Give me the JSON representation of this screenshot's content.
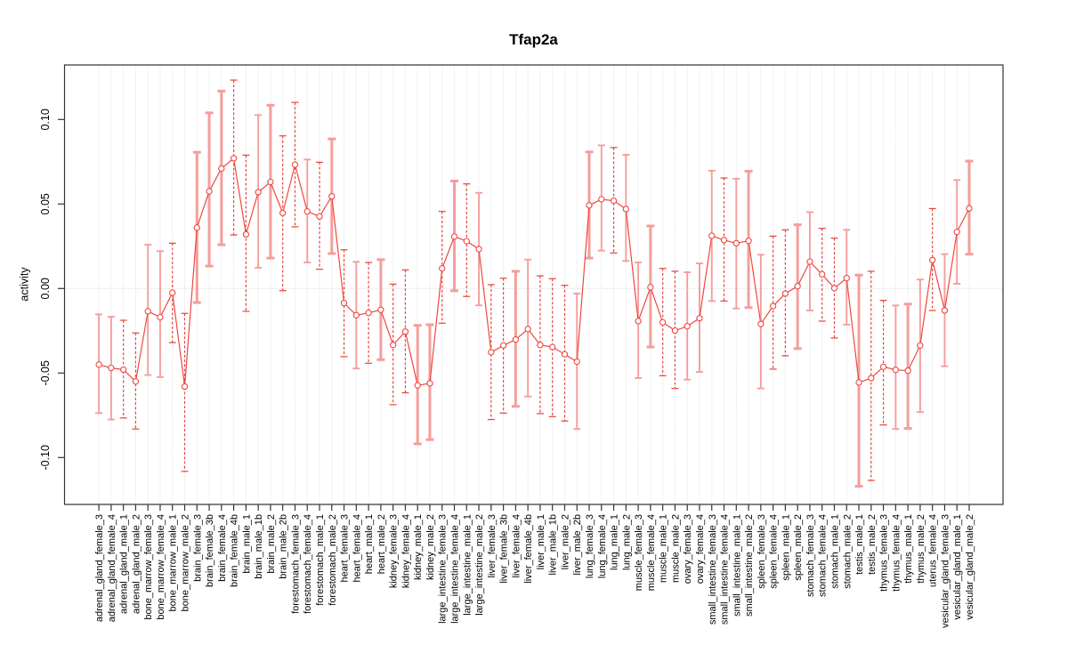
{
  "chart_data": {
    "type": "line",
    "title": "Tfap2a",
    "xlabel": "",
    "ylabel": "activity",
    "ylim": [
      -0.128,
      0.132
    ],
    "yticks": [
      -0.1,
      -0.05,
      0.0,
      0.05,
      0.1
    ],
    "grid": "dotted vertical gridline per category; dotted horizontal line at y=0",
    "legend": "none",
    "point_marker": "open-circle",
    "error_bars": true,
    "colors": {
      "line": "#ef4740",
      "point_stroke": "#ef4740",
      "errorbar_solid": "#f49e9b",
      "errorbar_dashed": "#e8423b",
      "grid": "#d8d8d8",
      "zero_line": "#c8c8c8",
      "frame": "#333333",
      "text": "#000000"
    },
    "categories": [
      "adrenal_gland_female_3",
      "adrenal_gland_female_4",
      "adrenal_gland_male_1",
      "adrenal_gland_male_2",
      "bone_marrow_female_3",
      "bone_marrow_female_4",
      "bone_marrow_male_1",
      "bone_marrow_male_2",
      "brain_female_3",
      "brain_female_3b",
      "brain_female_4",
      "brain_female_4b",
      "brain_male_1",
      "brain_male_1b",
      "brain_male_2",
      "brain_male_2b",
      "forestomach_female_3",
      "forestomach_female_4",
      "forestomach_male_1",
      "forestomach_male_2",
      "heart_female_3",
      "heart_female_4",
      "heart_male_1",
      "heart_male_2",
      "kidney_female_3",
      "kidney_female_4",
      "kidney_male_1",
      "kidney_male_2",
      "large_intestine_female_3",
      "large_intestine_female_4",
      "large_intestine_male_1",
      "large_intestine_male_2",
      "liver_female_3",
      "liver_female_3b",
      "liver_female_4",
      "liver_female_4b",
      "liver_male_1",
      "liver_male_1b",
      "liver_male_2",
      "liver_male_2b",
      "lung_female_3",
      "lung_female_4",
      "lung_male_1",
      "lung_male_2",
      "muscle_female_3",
      "muscle_female_4",
      "muscle_male_1",
      "muscle_male_2",
      "ovary_female_3",
      "ovary_female_4",
      "small_intestine_female_3",
      "small_intestine_female_4",
      "small_intestine_male_1",
      "small_intestine_male_2",
      "spleen_female_3",
      "spleen_female_4",
      "spleen_male_1",
      "spleen_male_2",
      "stomach_female_3",
      "stomach_female_4",
      "stomach_male_1",
      "stomach_male_2",
      "testis_male_1",
      "testis_male_2",
      "thymus_female_3",
      "thymus_female_4",
      "thymus_male_1",
      "thymus_male_2",
      "uterus_female_4",
      "vesicular_gland_female_3",
      "vesicular_gland_male_1",
      "vesicular_gland_male_2"
    ],
    "series": [
      {
        "name": "activity",
        "values": [
          -0.045,
          -0.047,
          -0.048,
          -0.055,
          -0.0135,
          -0.017,
          -0.0025,
          -0.058,
          0.036,
          0.0575,
          0.071,
          0.077,
          0.032,
          0.057,
          0.063,
          0.0447,
          0.0733,
          0.0456,
          0.0426,
          0.0545,
          -0.0086,
          -0.0158,
          -0.0144,
          -0.0126,
          -0.0334,
          -0.0255,
          -0.0573,
          -0.0561,
          0.0119,
          0.0307,
          0.028,
          0.0233,
          -0.0377,
          -0.0337,
          -0.0302,
          -0.024,
          -0.0334,
          -0.0346,
          -0.0389,
          -0.0433,
          0.0492,
          0.0528,
          0.0519,
          0.047,
          -0.0193,
          0.0008,
          -0.02,
          -0.0249,
          -0.0223,
          -0.0176,
          0.0312,
          0.0286,
          0.0268,
          0.0282,
          -0.021,
          -0.0104,
          -0.003,
          0.0014,
          0.0159,
          0.0084,
          0.0002,
          0.0061,
          -0.0556,
          -0.053,
          -0.0463,
          -0.0481,
          -0.0486,
          -0.0337,
          0.0168,
          -0.013,
          0.0335,
          0.0474
        ]
      }
    ],
    "error_low": [
      -0.0737,
      -0.0775,
      -0.0766,
      -0.0831,
      -0.0512,
      -0.0524,
      -0.032,
      -0.1082,
      -0.0083,
      0.0133,
      0.0259,
      0.0317,
      -0.0135,
      0.0123,
      0.018,
      -0.0013,
      0.0365,
      0.0154,
      0.0114,
      0.0207,
      -0.0403,
      -0.0473,
      -0.0442,
      -0.0421,
      -0.0687,
      -0.0617,
      -0.0919,
      -0.0894,
      -0.0205,
      -0.0013,
      -0.0047,
      -0.01,
      -0.0775,
      -0.0737,
      -0.0697,
      -0.0639,
      -0.074,
      -0.0758,
      -0.0784,
      -0.0831,
      0.018,
      0.0224,
      0.021,
      0.0163,
      -0.053,
      -0.0346,
      -0.0516,
      -0.0591,
      -0.0539,
      -0.0494,
      -0.0074,
      -0.0074,
      -0.0118,
      -0.0113,
      -0.0591,
      -0.0477,
      -0.0398,
      -0.0355,
      -0.013,
      -0.0193,
      -0.0293,
      -0.0214,
      -0.117,
      -0.1135,
      -0.0807,
      -0.0831,
      -0.0828,
      -0.0731,
      -0.013,
      -0.046,
      0.0028,
      0.0203
    ],
    "error_high": [
      -0.0153,
      -0.0167,
      -0.0188,
      -0.0263,
      0.0259,
      0.0221,
      0.0268,
      -0.0147,
      0.0806,
      0.1039,
      0.1168,
      0.1233,
      0.0789,
      0.1026,
      0.1084,
      0.0903,
      0.1101,
      0.0763,
      0.0747,
      0.0885,
      0.0229,
      0.0158,
      0.0154,
      0.0171,
      0.0026,
      0.011,
      -0.0218,
      -0.0214,
      0.0456,
      0.0636,
      0.0619,
      0.0566,
      0.0023,
      0.0061,
      0.0102,
      0.0171,
      0.0075,
      0.0058,
      0.0019,
      -0.003,
      0.0808,
      0.0847,
      0.0834,
      0.0791,
      0.0154,
      0.037,
      0.0119,
      0.0102,
      0.0096,
      0.0149,
      0.0697,
      0.0654,
      0.0649,
      0.0694,
      0.02,
      0.031,
      0.0347,
      0.0377,
      0.0452,
      0.0356,
      0.0298,
      0.0347,
      0.0079,
      0.0102,
      -0.007,
      -0.01,
      -0.0092,
      0.0053,
      0.0473,
      0.0203,
      0.0642,
      0.0754
    ],
    "errorbar_dashed": [
      false,
      false,
      true,
      true,
      false,
      false,
      true,
      true,
      false,
      false,
      false,
      true,
      true,
      false,
      false,
      true,
      true,
      false,
      true,
      false,
      true,
      false,
      true,
      false,
      true,
      true,
      false,
      false,
      true,
      false,
      true,
      false,
      true,
      true,
      false,
      false,
      true,
      true,
      true,
      false,
      false,
      false,
      true,
      false,
      false,
      false,
      true,
      true,
      false,
      false,
      false,
      true,
      false,
      false,
      false,
      true,
      true,
      false,
      false,
      true,
      true,
      false,
      false,
      true,
      true,
      false,
      false,
      false,
      true,
      false,
      false,
      false
    ],
    "errorbar_thick": [
      false,
      false,
      false,
      false,
      false,
      false,
      false,
      false,
      true,
      true,
      true,
      false,
      false,
      false,
      true,
      false,
      false,
      false,
      false,
      true,
      false,
      false,
      false,
      true,
      false,
      false,
      true,
      true,
      false,
      true,
      false,
      false,
      false,
      false,
      true,
      false,
      false,
      false,
      false,
      false,
      true,
      false,
      false,
      false,
      false,
      true,
      false,
      false,
      false,
      false,
      false,
      false,
      false,
      true,
      false,
      false,
      false,
      true,
      false,
      false,
      false,
      false,
      true,
      false,
      false,
      false,
      true,
      false,
      false,
      false,
      false,
      true
    ]
  }
}
